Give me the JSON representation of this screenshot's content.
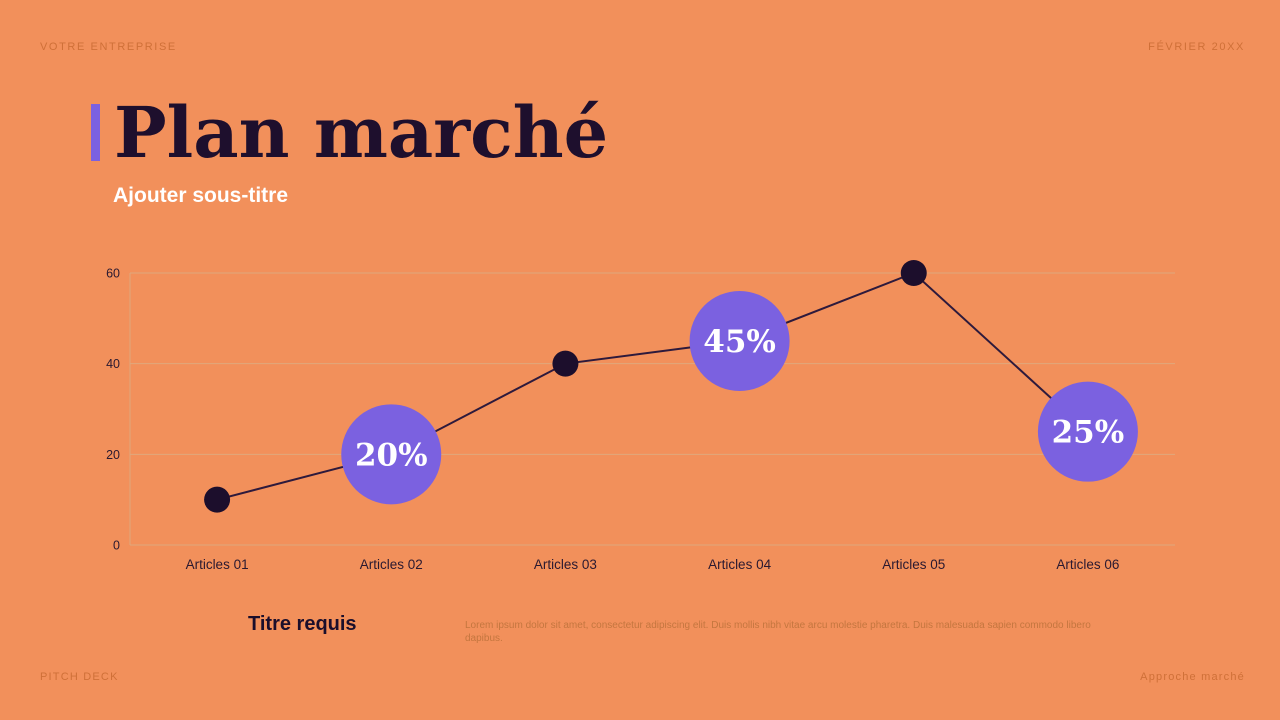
{
  "meta": {
    "company": "VOTRE ENTREPRISE",
    "date": "FÉVRIER 20XX",
    "footer_left": "PITCH DECK",
    "footer_right": "Approche marché"
  },
  "header": {
    "title": "Plan marché",
    "subtitle": "Ajouter sous-titre"
  },
  "body": {
    "caption_title": "Titre requis",
    "caption_text": "Lorem ipsum dolor sit amet, consectetur adipiscing elit. Duis mollis nibh vitae arcu molestie pharetra. Duis malesuada sapien commodo libero dapibus."
  },
  "colors": {
    "background": "#F2905B",
    "ink": "#1C0E2C",
    "line": "#2E1A3C",
    "accent": "#7B61E0",
    "grid": "#DFA87D",
    "white": "#FFFFFF",
    "muted_orange": "#CF7038"
  },
  "chart_data": {
    "type": "line",
    "title": "",
    "xlabel": "",
    "ylabel": "",
    "categories": [
      "Articles 01",
      "Articles 02",
      "Articles 03",
      "Articles 04",
      "Articles 05",
      "Articles 06"
    ],
    "values": [
      10,
      20,
      40,
      45,
      60,
      25
    ],
    "point_labels": [
      null,
      "20%",
      null,
      "45%",
      null,
      "25%"
    ],
    "y_ticks": [
      0,
      20,
      40,
      60
    ],
    "ylim": [
      0,
      60
    ],
    "grid": true,
    "legend": false
  }
}
